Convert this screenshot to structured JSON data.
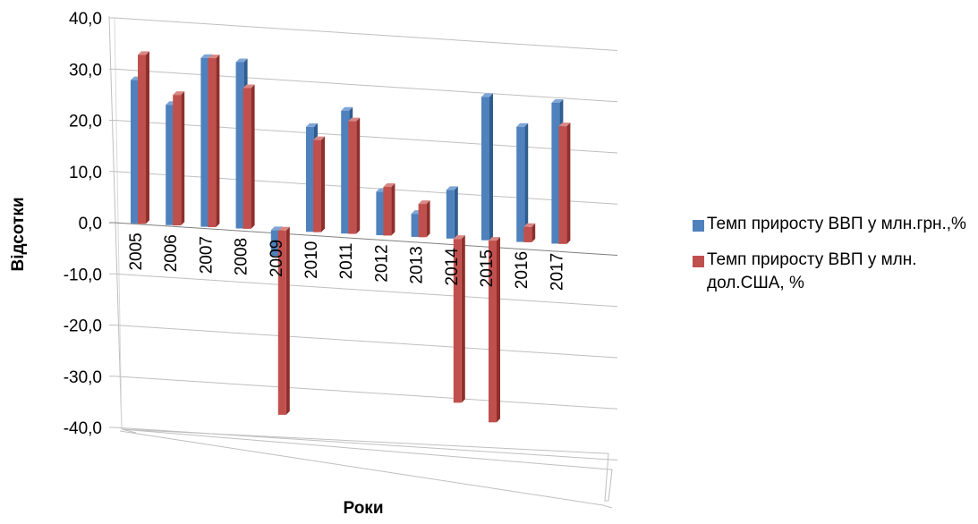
{
  "chart_data": {
    "type": "bar",
    "title": "",
    "xlabel": "Роки",
    "ylabel": "Відсотки",
    "ylim": [
      -40,
      40
    ],
    "yticks": [
      40,
      30,
      20,
      10,
      0,
      -10,
      -20,
      -30,
      -40
    ],
    "ytick_labels": [
      "40,0",
      "30,0",
      "20,0",
      "10,0",
      "0,0",
      "-10,0",
      "-20,0",
      "-30,0",
      "-40,0"
    ],
    "categories": [
      "2005",
      "2006",
      "2007",
      "2008",
      "2009",
      "2010",
      "2011",
      "2012",
      "2013",
      "2014",
      "2015",
      "2016",
      "2017"
    ],
    "series": [
      {
        "name": "Темп приросту ВВП у млн.грн.,%",
        "color": "#4f81bd",
        "values": [
          28.0,
          23.5,
          33.0,
          32.5,
          -5.0,
          20.5,
          24.0,
          8.5,
          4.5,
          9.5,
          28.0,
          22.5,
          27.5
        ]
      },
      {
        "name": "Темп приросту ВВП у млн. дол.США, %",
        "color": "#c0504d",
        "values": [
          33.0,
          25.5,
          33.0,
          27.5,
          -36.0,
          18.0,
          22.0,
          9.5,
          6.5,
          -32.0,
          -35.5,
          3.0,
          23.0
        ]
      }
    ],
    "grid": true,
    "legend_position": "right"
  }
}
